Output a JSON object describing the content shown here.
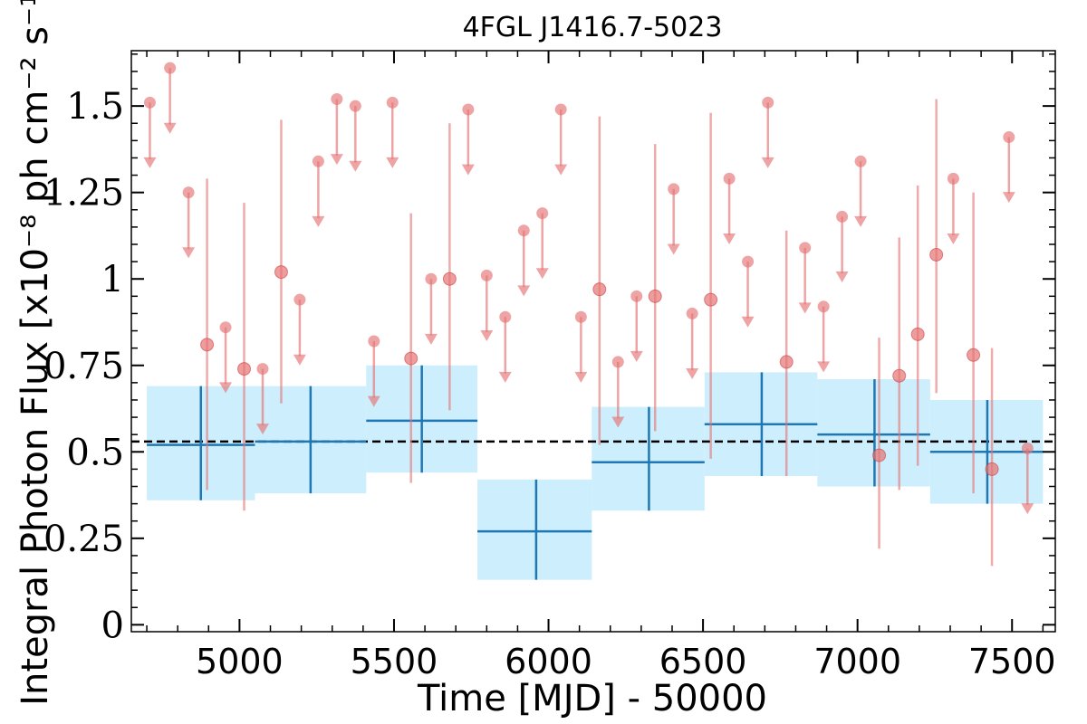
{
  "chart_data": {
    "type": "scatter",
    "title": "4FGL J1416.7-5023",
    "xlabel": "Time [MJD] - 50000",
    "ylabel": "Integral Photon Flux [x10⁻⁸ ph cm⁻² s⁻¹]",
    "xlim": [
      4650,
      7640
    ],
    "ylim": [
      -0.02,
      1.66
    ],
    "x_ticks": [
      5000,
      5500,
      6000,
      6500,
      7000,
      7500
    ],
    "x_tick_labels": [
      "5000",
      "5500",
      "6000",
      "6500",
      "7000",
      "7500"
    ],
    "y_ticks": [
      0,
      0.25,
      0.5,
      0.75,
      1,
      1.25,
      1.5
    ],
    "y_tick_labels": [
      "0",
      "0.25",
      "0.5",
      "0.75",
      "1",
      "1.25",
      "1.5"
    ],
    "grid": false,
    "reference_line": {
      "y": 0.53,
      "style": "dashed",
      "color": "#000000"
    },
    "colors": {
      "short_bins": "#e57373",
      "long_bins": "#1f77b4",
      "long_bins_band": "#cdeefc"
    },
    "series": [
      {
        "kind": "long_bins",
        "points": [
          {
            "x": 4875,
            "x_lo": 4700,
            "x_hi": 5050,
            "y": 0.52,
            "y_lo": 0.36,
            "y_hi": 0.69
          },
          {
            "x": 5230,
            "x_lo": 5050,
            "x_hi": 5410,
            "y": 0.53,
            "y_lo": 0.38,
            "y_hi": 0.69
          },
          {
            "x": 5590,
            "x_lo": 5410,
            "x_hi": 5770,
            "y": 0.59,
            "y_lo": 0.44,
            "y_hi": 0.75
          },
          {
            "x": 5960,
            "x_lo": 5770,
            "x_hi": 6140,
            "y": 0.27,
            "y_lo": 0.13,
            "y_hi": 0.42
          },
          {
            "x": 6325,
            "x_lo": 6140,
            "x_hi": 6505,
            "y": 0.47,
            "y_lo": 0.33,
            "y_hi": 0.63
          },
          {
            "x": 6690,
            "x_lo": 6505,
            "x_hi": 6870,
            "y": 0.58,
            "y_lo": 0.43,
            "y_hi": 0.73
          },
          {
            "x": 7055,
            "x_lo": 6870,
            "x_hi": 7235,
            "y": 0.55,
            "y_lo": 0.4,
            "y_hi": 0.71
          },
          {
            "x": 7420,
            "x_lo": 7235,
            "x_hi": 7600,
            "y": 0.5,
            "y_lo": 0.35,
            "y_hi": 0.65
          }
        ]
      },
      {
        "kind": "short_bins",
        "upper_limits": [
          {
            "x": 4710,
            "y": 1.51
          },
          {
            "x": 4775,
            "y": 1.61
          },
          {
            "x": 4835,
            "y": 1.25
          },
          {
            "x": 4955,
            "y": 0.86
          },
          {
            "x": 5075,
            "y": 0.74
          },
          {
            "x": 5195,
            "y": 0.94
          },
          {
            "x": 5255,
            "y": 1.34
          },
          {
            "x": 5315,
            "y": 1.52
          },
          {
            "x": 5375,
            "y": 1.5
          },
          {
            "x": 5435,
            "y": 0.82
          },
          {
            "x": 5495,
            "y": 1.51
          },
          {
            "x": 5620,
            "y": 1.0
          },
          {
            "x": 5740,
            "y": 1.49
          },
          {
            "x": 5800,
            "y": 1.01
          },
          {
            "x": 5860,
            "y": 0.89
          },
          {
            "x": 5920,
            "y": 1.14
          },
          {
            "x": 5980,
            "y": 1.19
          },
          {
            "x": 6040,
            "y": 1.49
          },
          {
            "x": 6105,
            "y": 0.89
          },
          {
            "x": 6225,
            "y": 0.76
          },
          {
            "x": 6285,
            "y": 0.95
          },
          {
            "x": 6405,
            "y": 1.26
          },
          {
            "x": 6465,
            "y": 0.9
          },
          {
            "x": 6585,
            "y": 1.29
          },
          {
            "x": 6645,
            "y": 1.05
          },
          {
            "x": 6710,
            "y": 1.51
          },
          {
            "x": 6830,
            "y": 1.09
          },
          {
            "x": 6890,
            "y": 0.92
          },
          {
            "x": 6950,
            "y": 1.18
          },
          {
            "x": 7010,
            "y": 1.34
          },
          {
            "x": 7310,
            "y": 1.29
          },
          {
            "x": 7490,
            "y": 1.41
          },
          {
            "x": 7550,
            "y": 0.51
          }
        ],
        "detections": [
          {
            "x": 4895,
            "y": 0.81,
            "y_lo": 0.39,
            "y_hi": 1.29
          },
          {
            "x": 5015,
            "y": 0.74,
            "y_lo": 0.33,
            "y_hi": 1.22
          },
          {
            "x": 5135,
            "y": 1.02,
            "y_lo": 0.64,
            "y_hi": 1.46
          },
          {
            "x": 5555,
            "y": 0.77,
            "y_lo": 0.41,
            "y_hi": 1.19
          },
          {
            "x": 5680,
            "y": 1.0,
            "y_lo": 0.62,
            "y_hi": 1.45
          },
          {
            "x": 6165,
            "y": 0.97,
            "y_lo": 0.52,
            "y_hi": 1.47
          },
          {
            "x": 6345,
            "y": 0.95,
            "y_lo": 0.56,
            "y_hi": 1.39
          },
          {
            "x": 6525,
            "y": 0.94,
            "y_lo": 0.48,
            "y_hi": 1.48
          },
          {
            "x": 6770,
            "y": 0.76,
            "y_lo": 0.43,
            "y_hi": 1.14
          },
          {
            "x": 7070,
            "y": 0.49,
            "y_lo": 0.22,
            "y_hi": 0.83
          },
          {
            "x": 7135,
            "y": 0.72,
            "y_lo": 0.39,
            "y_hi": 1.12
          },
          {
            "x": 7195,
            "y": 0.84,
            "y_lo": 0.46,
            "y_hi": 1.27
          },
          {
            "x": 7255,
            "y": 1.07,
            "y_lo": 0.67,
            "y_hi": 1.52
          },
          {
            "x": 7375,
            "y": 0.78,
            "y_lo": 0.38,
            "y_hi": 1.25
          },
          {
            "x": 7435,
            "y": 0.45,
            "y_lo": 0.17,
            "y_hi": 0.8
          }
        ]
      }
    ]
  }
}
